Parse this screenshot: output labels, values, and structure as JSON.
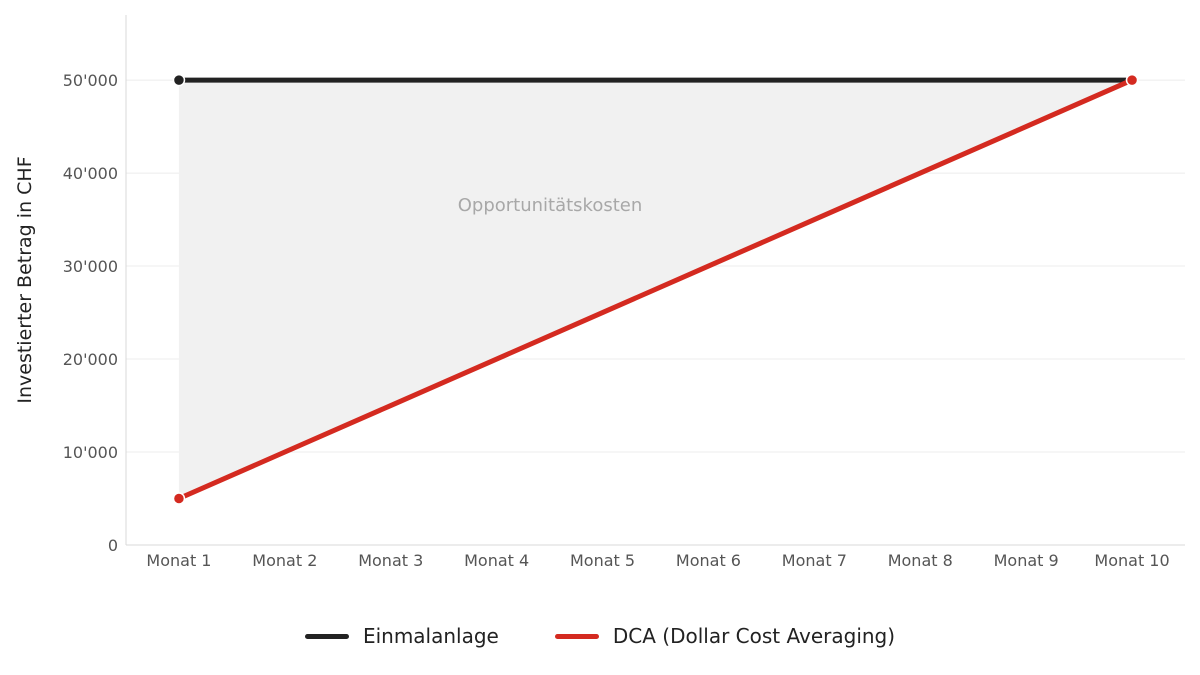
{
  "chart_data": {
    "type": "line",
    "title": "",
    "xlabel": "",
    "ylabel": "Investierter Betrag in CHF",
    "categories": [
      "Monat 1",
      "Monat 2",
      "Monat 3",
      "Monat 4",
      "Monat 5",
      "Monat 6",
      "Monat 7",
      "Monat 8",
      "Monat 9",
      "Monat 10"
    ],
    "ylim": [
      0,
      57000
    ],
    "yticks": [
      0,
      10000,
      20000,
      30000,
      40000,
      50000
    ],
    "ytick_labels": [
      "0",
      "10'000",
      "20'000",
      "30'000",
      "40'000",
      "50'000"
    ],
    "grid": true,
    "legend_position": "bottom",
    "series": [
      {
        "name": "Einmalanlage",
        "color": "#222222",
        "values": [
          50000,
          50000,
          50000,
          50000,
          50000,
          50000,
          50000,
          50000,
          50000,
          50000
        ]
      },
      {
        "name": "DCA (Dollar Cost Averaging)",
        "color": "#d42a20",
        "values": [
          5000,
          10000,
          15000,
          20000,
          25000,
          30000,
          35000,
          40000,
          45000,
          50000
        ]
      }
    ],
    "area_annotation": {
      "label": "Opportunitätskosten",
      "fill": "#f1f1f1"
    }
  }
}
